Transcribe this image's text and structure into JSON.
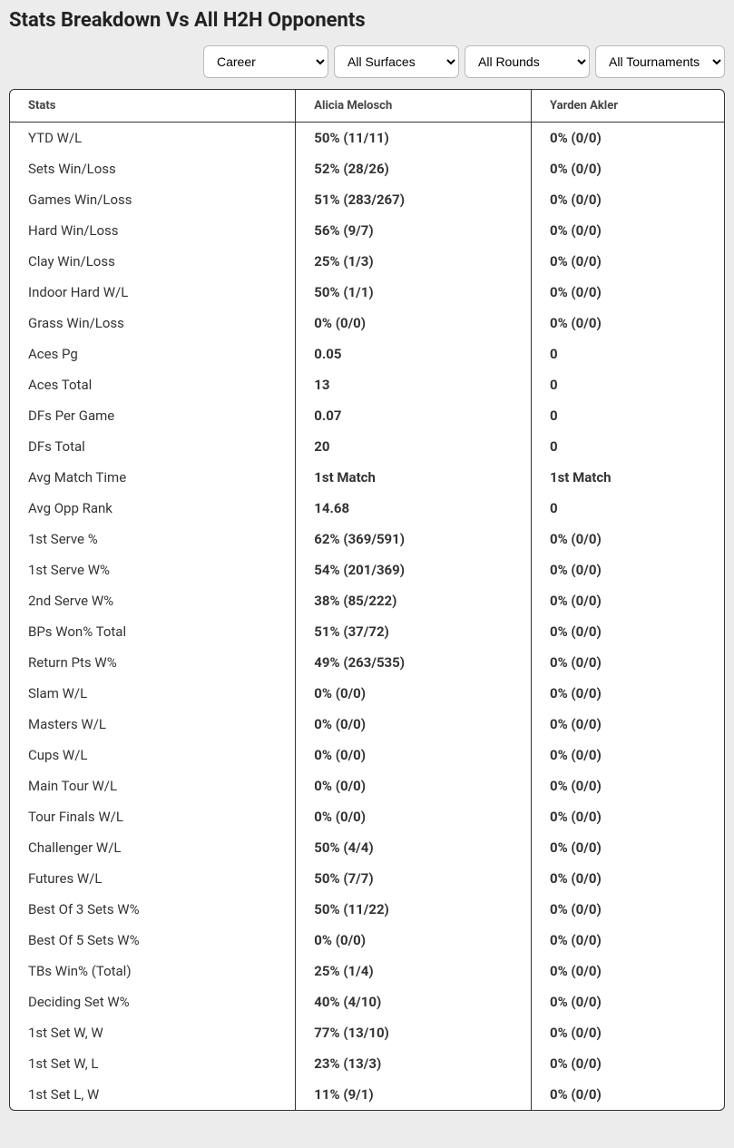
{
  "title": "Stats Breakdown Vs All H2H Opponents",
  "filters": {
    "period": "Career",
    "surface": "All Surfaces",
    "rounds": "All Rounds",
    "tournaments": "All Tournaments"
  },
  "columns": {
    "stats": "Stats",
    "player1": "Alicia Melosch",
    "player2": "Yarden Akler"
  },
  "rows": [
    {
      "stat": "YTD W/L",
      "p1": "50% (11/11)",
      "p2": "0% (0/0)"
    },
    {
      "stat": "Sets Win/Loss",
      "p1": "52% (28/26)",
      "p2": "0% (0/0)"
    },
    {
      "stat": "Games Win/Loss",
      "p1": "51% (283/267)",
      "p2": "0% (0/0)"
    },
    {
      "stat": "Hard Win/Loss",
      "p1": "56% (9/7)",
      "p2": "0% (0/0)"
    },
    {
      "stat": "Clay Win/Loss",
      "p1": "25% (1/3)",
      "p2": "0% (0/0)"
    },
    {
      "stat": "Indoor Hard W/L",
      "p1": "50% (1/1)",
      "p2": "0% (0/0)"
    },
    {
      "stat": "Grass Win/Loss",
      "p1": "0% (0/0)",
      "p2": "0% (0/0)"
    },
    {
      "stat": "Aces Pg",
      "p1": "0.05",
      "p2": "0"
    },
    {
      "stat": "Aces Total",
      "p1": "13",
      "p2": "0"
    },
    {
      "stat": "DFs Per Game",
      "p1": "0.07",
      "p2": "0"
    },
    {
      "stat": "DFs Total",
      "p1": "20",
      "p2": "0"
    },
    {
      "stat": "Avg Match Time",
      "p1": "1st Match",
      "p2": "1st Match"
    },
    {
      "stat": "Avg Opp Rank",
      "p1": "14.68",
      "p2": "0"
    },
    {
      "stat": "1st Serve %",
      "p1": "62% (369/591)",
      "p2": "0% (0/0)"
    },
    {
      "stat": "1st Serve W%",
      "p1": "54% (201/369)",
      "p2": "0% (0/0)"
    },
    {
      "stat": "2nd Serve W%",
      "p1": "38% (85/222)",
      "p2": "0% (0/0)"
    },
    {
      "stat": "BPs Won% Total",
      "p1": "51% (37/72)",
      "p2": "0% (0/0)"
    },
    {
      "stat": "Return Pts W%",
      "p1": "49% (263/535)",
      "p2": "0% (0/0)"
    },
    {
      "stat": "Slam W/L",
      "p1": "0% (0/0)",
      "p2": "0% (0/0)"
    },
    {
      "stat": "Masters W/L",
      "p1": "0% (0/0)",
      "p2": "0% (0/0)"
    },
    {
      "stat": "Cups W/L",
      "p1": "0% (0/0)",
      "p2": "0% (0/0)"
    },
    {
      "stat": "Main Tour W/L",
      "p1": "0% (0/0)",
      "p2": "0% (0/0)"
    },
    {
      "stat": "Tour Finals W/L",
      "p1": "0% (0/0)",
      "p2": "0% (0/0)"
    },
    {
      "stat": "Challenger W/L",
      "p1": "50% (4/4)",
      "p2": "0% (0/0)"
    },
    {
      "stat": "Futures W/L",
      "p1": "50% (7/7)",
      "p2": "0% (0/0)"
    },
    {
      "stat": "Best Of 3 Sets W%",
      "p1": "50% (11/22)",
      "p2": "0% (0/0)"
    },
    {
      "stat": "Best Of 5 Sets W%",
      "p1": "0% (0/0)",
      "p2": "0% (0/0)"
    },
    {
      "stat": "TBs Win% (Total)",
      "p1": "25% (1/4)",
      "p2": "0% (0/0)"
    },
    {
      "stat": "Deciding Set W%",
      "p1": "40% (4/10)",
      "p2": "0% (0/0)"
    },
    {
      "stat": "1st Set W, W",
      "p1": "77% (13/10)",
      "p2": "0% (0/0)"
    },
    {
      "stat": "1st Set W, L",
      "p1": "23% (13/3)",
      "p2": "0% (0/0)"
    },
    {
      "stat": "1st Set L, W",
      "p1": "11% (9/1)",
      "p2": "0% (0/0)"
    }
  ]
}
